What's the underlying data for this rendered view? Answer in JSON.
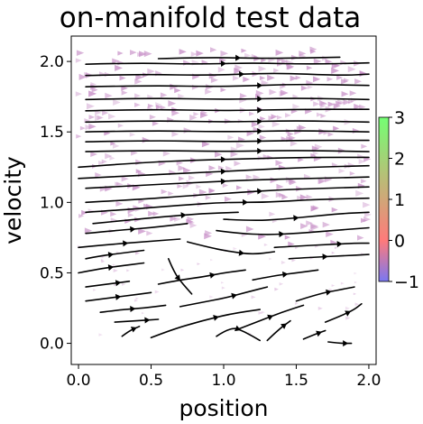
{
  "chart_data": {
    "type": "streamplot",
    "title": "on-manifold test data",
    "xlabel": "position",
    "ylabel": "velocity",
    "xlim": [
      -0.05,
      2.05
    ],
    "ylim": [
      -0.15,
      2.18
    ],
    "xticks": [
      "0.0",
      "0.5",
      "1.0",
      "1.5",
      "2.0"
    ],
    "yticks": [
      "0.0",
      "0.5",
      "1.0",
      "1.5",
      "2.0"
    ],
    "grid": false,
    "streamline_color": "#000000",
    "marker_color": "#c78fc7",
    "marker_shape": "right-pointing triangle",
    "colorbar": {
      "range": [
        -1,
        3
      ],
      "ticks": [
        "−1",
        "0",
        "1",
        "2",
        "3"
      ],
      "colors": [
        "#7a78f2",
        "#ff7a7a",
        "#74ff74"
      ],
      "placement": "right"
    },
    "streamlines": [
      {
        "x": [
          0.55,
          0.9,
          1.3,
          1.8
        ],
        "y": [
          2.02,
          2.03,
          2.02,
          2.03
        ]
      },
      {
        "x": [
          0.05,
          0.4,
          0.8,
          1.2,
          1.6,
          2.0
        ],
        "y": [
          1.98,
          1.99,
          1.98,
          1.99,
          1.98,
          1.99
        ]
      },
      {
        "x": [
          0.05,
          0.45,
          0.9,
          1.35,
          1.8,
          2.0
        ],
        "y": [
          1.9,
          1.91,
          1.9,
          1.92,
          1.9,
          1.91
        ]
      },
      {
        "x": [
          0.05,
          0.5,
          1.0,
          1.5,
          2.0
        ],
        "y": [
          1.82,
          1.83,
          1.82,
          1.84,
          1.83
        ]
      },
      {
        "x": [
          0.05,
          0.5,
          1.0,
          1.5,
          2.0
        ],
        "y": [
          1.73,
          1.74,
          1.73,
          1.74,
          1.73
        ]
      },
      {
        "x": [
          0.05,
          0.5,
          1.0,
          1.5,
          2.0
        ],
        "y": [
          1.65,
          1.66,
          1.65,
          1.66,
          1.66
        ]
      },
      {
        "x": [
          0.05,
          0.5,
          1.0,
          1.5,
          2.0
        ],
        "y": [
          1.57,
          1.58,
          1.57,
          1.58,
          1.57
        ]
      },
      {
        "x": [
          0.05,
          0.5,
          1.0,
          1.5,
          2.0
        ],
        "y": [
          1.5,
          1.51,
          1.5,
          1.51,
          1.5
        ]
      },
      {
        "x": [
          0.05,
          0.5,
          1.0,
          1.5,
          2.0
        ],
        "y": [
          1.43,
          1.44,
          1.43,
          1.44,
          1.44
        ]
      },
      {
        "x": [
          0.05,
          0.5,
          1.0,
          1.5,
          2.0
        ],
        "y": [
          1.36,
          1.37,
          1.36,
          1.37,
          1.36
        ]
      },
      {
        "x": [
          0.0,
          0.4,
          0.8,
          1.2,
          1.6,
          2.0
        ],
        "y": [
          1.25,
          1.28,
          1.3,
          1.31,
          1.32,
          1.32
        ]
      },
      {
        "x": [
          0.0,
          0.4,
          0.8,
          1.2,
          1.6,
          2.0
        ],
        "y": [
          1.17,
          1.19,
          1.21,
          1.23,
          1.25,
          1.26
        ]
      },
      {
        "x": [
          0.05,
          0.4,
          0.8,
          1.2,
          1.6,
          2.0
        ],
        "y": [
          1.1,
          1.12,
          1.14,
          1.16,
          1.17,
          1.18
        ]
      },
      {
        "x": [
          0.05,
          0.4,
          0.8,
          1.1,
          1.4,
          1.7,
          2.0
        ],
        "y": [
          1.0,
          1.02,
          1.05,
          1.07,
          1.09,
          1.1,
          1.11
        ]
      },
      {
        "x": [
          0.05,
          0.35,
          0.7,
          1.0,
          1.3,
          1.6,
          2.0
        ],
        "y": [
          0.93,
          0.95,
          0.98,
          1.0,
          1.0,
          1.02,
          1.03
        ]
      },
      {
        "x": [
          0.1,
          0.3,
          0.6,
          0.85,
          1.1
        ],
        "y": [
          0.85,
          0.87,
          0.9,
          0.92,
          0.93
        ]
      },
      {
        "x": [
          1.0,
          1.2,
          1.4,
          1.6,
          1.8,
          2.0
        ],
        "y": [
          0.88,
          0.87,
          0.88,
          0.9,
          0.92,
          0.93
        ]
      },
      {
        "x": [
          0.05,
          0.25,
          0.5,
          0.75
        ],
        "y": [
          0.78,
          0.8,
          0.82,
          0.85
        ]
      },
      {
        "x": [
          0.95,
          1.1,
          1.3,
          1.5,
          1.75,
          2.0
        ],
        "y": [
          0.8,
          0.78,
          0.77,
          0.78,
          0.8,
          0.82
        ]
      },
      {
        "x": [
          0.0,
          0.2,
          0.45,
          0.7
        ],
        "y": [
          0.68,
          0.7,
          0.72,
          0.74
        ]
      },
      {
        "x": [
          0.75,
          0.9,
          1.05,
          1.2,
          1.35
        ],
        "y": [
          0.72,
          0.68,
          0.65,
          0.63,
          0.65
        ]
      },
      {
        "x": [
          1.35,
          1.5,
          1.7,
          1.9,
          2.0
        ],
        "y": [
          0.68,
          0.69,
          0.7,
          0.71,
          0.71
        ]
      },
      {
        "x": [
          0.05,
          0.15,
          0.3,
          0.45
        ],
        "y": [
          0.6,
          0.62,
          0.64,
          0.66
        ]
      },
      {
        "x": [
          1.45,
          1.6,
          1.8,
          2.0
        ],
        "y": [
          0.6,
          0.61,
          0.62,
          0.63
        ]
      },
      {
        "x": [
          0.0,
          0.15,
          0.3,
          0.45
        ],
        "y": [
          0.5,
          0.53,
          0.55,
          0.57
        ]
      },
      {
        "x": [
          0.55,
          0.7,
          0.85,
          1.0,
          1.15
        ],
        "y": [
          0.42,
          0.45,
          0.47,
          0.5,
          0.52
        ]
      },
      {
        "x": [
          1.2,
          1.35,
          1.5,
          1.65
        ],
        "y": [
          0.45,
          0.48,
          0.5,
          0.52
        ]
      },
      {
        "x": [
          0.05,
          0.2,
          0.35
        ],
        "y": [
          0.4,
          0.42,
          0.44
        ]
      },
      {
        "x": [
          0.62,
          0.66,
          0.72,
          0.78
        ],
        "y": [
          0.6,
          0.5,
          0.42,
          0.35
        ]
      },
      {
        "x": [
          0.05,
          0.2,
          0.35,
          0.5
        ],
        "y": [
          0.3,
          0.32,
          0.34,
          0.36
        ]
      },
      {
        "x": [
          0.7,
          0.85,
          1.0,
          1.15,
          1.3
        ],
        "y": [
          0.26,
          0.29,
          0.32,
          0.36,
          0.4
        ]
      },
      {
        "x": [
          1.5,
          1.65,
          1.8,
          1.9
        ],
        "y": [
          0.3,
          0.35,
          0.38,
          0.4
        ]
      },
      {
        "x": [
          0.15,
          0.3,
          0.45,
          0.6
        ],
        "y": [
          0.22,
          0.24,
          0.25,
          0.27
        ]
      },
      {
        "x": [
          0.5,
          0.65,
          0.85,
          1.05,
          1.25
        ],
        "y": [
          0.04,
          0.1,
          0.16,
          0.21,
          0.24
        ]
      },
      {
        "x": [
          1.1,
          1.25,
          1.4,
          1.55
        ],
        "y": [
          0.1,
          0.16,
          0.22,
          0.27
        ]
      },
      {
        "x": [
          0.25,
          0.4,
          0.55
        ],
        "y": [
          0.15,
          0.16,
          0.17
        ]
      },
      {
        "x": [
          1.7,
          1.82,
          1.9,
          1.95
        ],
        "y": [
          0.15,
          0.2,
          0.24,
          0.28
        ]
      },
      {
        "x": [
          0.3,
          0.35,
          0.42
        ],
        "y": [
          0.05,
          0.09,
          0.12
        ]
      },
      {
        "x": [
          0.95,
          1.05,
          1.15,
          1.25
        ],
        "y": [
          0.05,
          0.12,
          0.08,
          0.02
        ]
      },
      {
        "x": [
          1.3,
          1.38,
          1.46
        ],
        "y": [
          0.02,
          0.1,
          0.16
        ]
      },
      {
        "x": [
          1.55,
          1.62,
          1.7
        ],
        "y": [
          0.03,
          0.06,
          0.09
        ]
      },
      {
        "x": [
          1.72,
          1.8,
          1.88
        ],
        "y": [
          0.01,
          0.0,
          0.0
        ]
      }
    ]
  }
}
